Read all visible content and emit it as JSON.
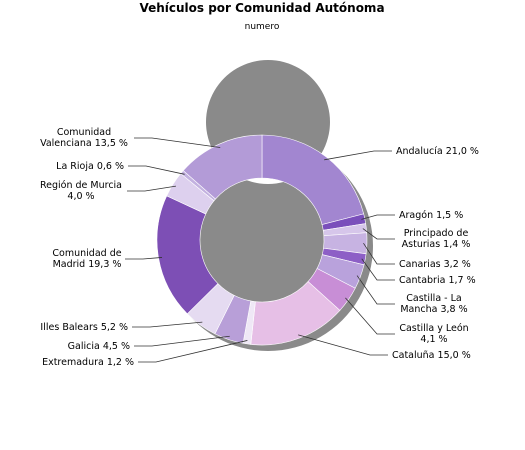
{
  "chart_data": {
    "type": "pie",
    "variant": "donut",
    "title": "Vehículos por Comunidad Autónoma",
    "subtitle": "numero",
    "slices": [
      {
        "name": "Andalucía",
        "value": 21.0,
        "label": "Andalucía 21,0 %",
        "color": "#a286d0"
      },
      {
        "name": "Aragón",
        "value": 1.5,
        "label": "Aragón 1,5 %",
        "color": "#7a4fbb"
      },
      {
        "name": "Principado de Asturias",
        "value": 1.4,
        "label": "Principado de Asturias 1,4 %",
        "color": "#d6c6ea"
      },
      {
        "name": "Canarias",
        "value": 3.2,
        "label": "Canarias 3,2 %",
        "color": "#c7b3e2"
      },
      {
        "name": "Cantabria",
        "value": 1.7,
        "label": "Cantabria 1,7 %",
        "color": "#8d5fc6"
      },
      {
        "name": "Castilla - La Mancha",
        "value": 3.8,
        "label": "Castilla - La Mancha 3,8 %",
        "color": "#b9a2dc"
      },
      {
        "name": "Castilla y León",
        "value": 4.1,
        "label": "Castilla y León 4,1 %",
        "color": "#c88ed6"
      },
      {
        "name": "Cataluña",
        "value": 15.0,
        "label": "Cataluña 15,0 %",
        "color": "#e6bfe6"
      },
      {
        "name": "Extremadura",
        "value": 1.2,
        "label": "Extremadura 1,2 %",
        "color": "#efe8f6"
      },
      {
        "name": "Galicia",
        "value": 4.5,
        "label": "Galicia 4,5 %",
        "color": "#b89fd8"
      },
      {
        "name": "Illes Balears",
        "value": 5.2,
        "label": "Illes Balears 5,2 %",
        "color": "#e5dbf1"
      },
      {
        "name": "Comunidad de Madrid",
        "value": 19.3,
        "label": "Comunidad de Madrid 19,3 %",
        "color": "#7d4fb5"
      },
      {
        "name": "Región de Murcia",
        "value": 4.0,
        "label": "Región de Murcia 4,0 %",
        "color": "#ddd0ee"
      },
      {
        "name": "La Rioja",
        "value": 0.6,
        "label": "La Rioja 0,6 %",
        "color": "#c3b2e0"
      },
      {
        "name": "Comunidad Valenciana",
        "value": 13.5,
        "label": "Comunidad Valenciana 13,5 %",
        "color": "#b39bd7"
      }
    ]
  }
}
